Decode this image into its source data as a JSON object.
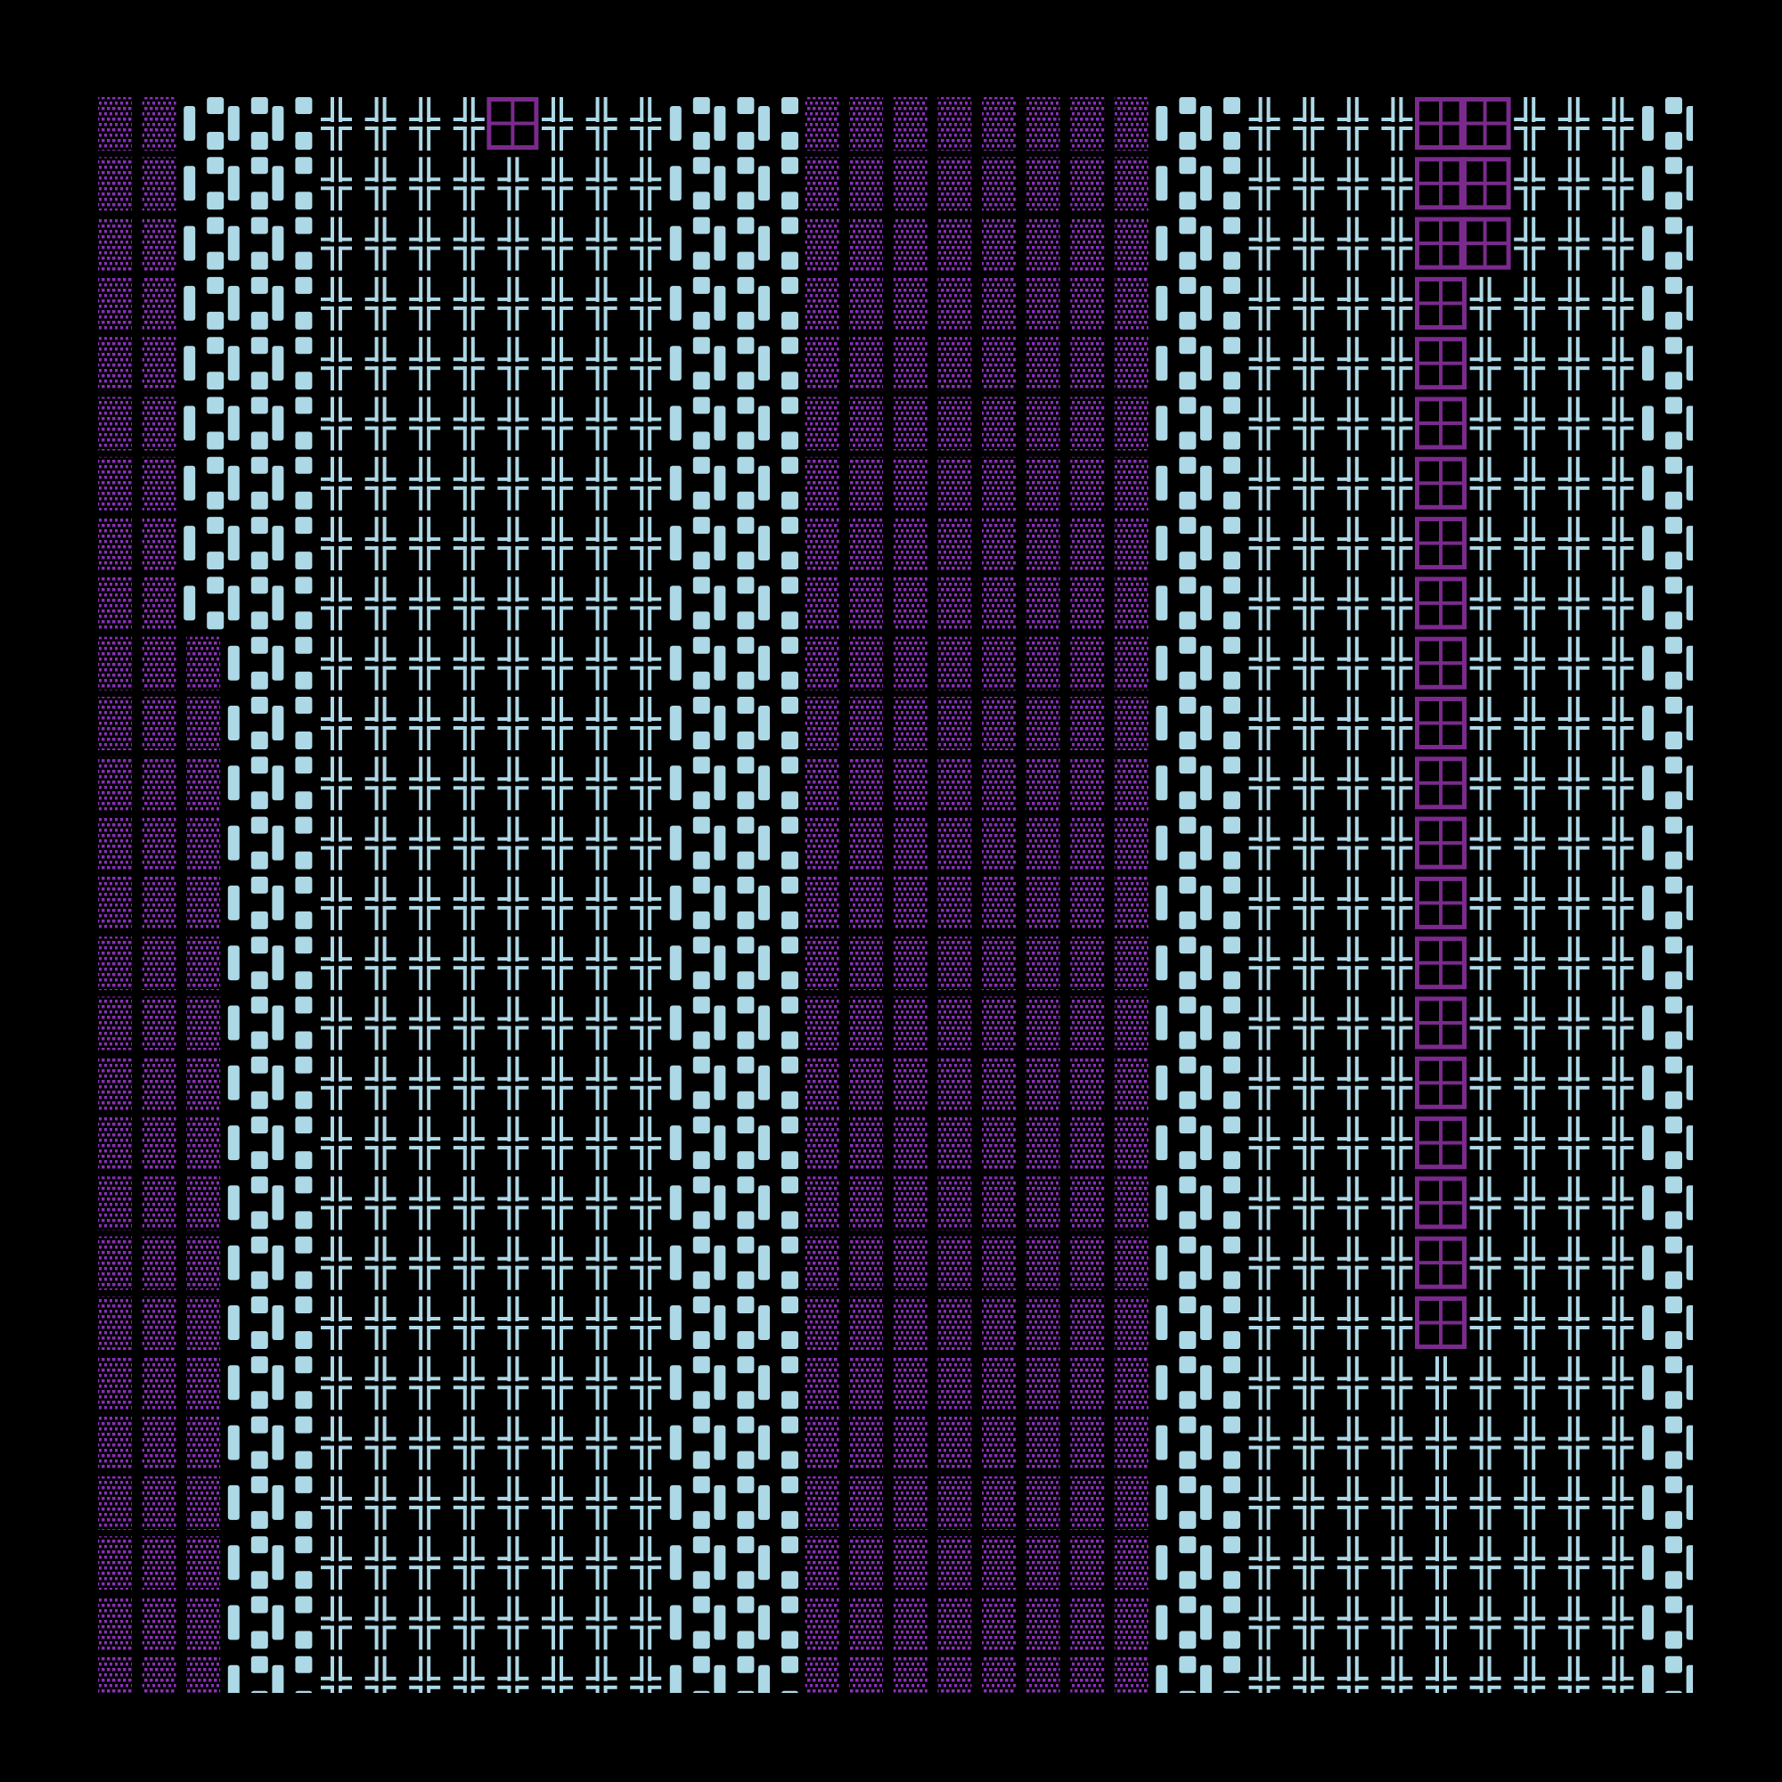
{
  "background": "#000000",
  "tiles": {
    "░": {
      "name": "shade-tile",
      "icon": "dotted-shade-icon",
      "color": "#8a2fb8"
    },
    "▐": {
      "name": "pillar-tile",
      "icon": "bar-and-blocks-icon",
      "color": "#add8e6"
    },
    "╬": {
      "name": "cross-tile",
      "icon": "double-cross-icon",
      "color": "#add8e6"
    },
    "⊞": {
      "name": "window-tile",
      "icon": "boxed-grid-icon",
      "color": "#7a2a8c"
    }
  },
  "grid": {
    "rows": [
      "░░▐▐▐╬╬╬╬⊞╬╬╬▐▐▐░░░░░░░░▐▐╬╬╬╬⊞⊞╬╬╬▐▐",
      "░░▐▐▐╬╬╬╬╬╬╬╬▐▐▐░░░░░░░░▐▐╬╬╬╬⊞⊞╬╬╬▐▐",
      "░░▐▐▐╬╬╬╬╬╬╬╬▐▐▐░░░░░░░░▐▐╬╬╬╬⊞⊞╬╬╬▐▐",
      "░░▐▐▐╬╬╬╬╬╬╬╬▐▐▐░░░░░░░░▐▐╬╬╬╬⊞╬╬╬╬▐▐",
      "░░▐▐▐╬╬╬╬╬╬╬╬▐▐▐░░░░░░░░▐▐╬╬╬╬⊞╬╬╬╬▐▐",
      "░░▐▐▐╬╬╬╬╬╬╬╬▐▐▐░░░░░░░░▐▐╬╬╬╬⊞╬╬╬╬▐▐",
      "░░▐▐▐╬╬╬╬╬╬╬╬▐▐▐░░░░░░░░▐▐╬╬╬╬⊞╬╬╬╬▐▐",
      "░░▐▐▐╬╬╬╬╬╬╬╬▐▐▐░░░░░░░░▐▐╬╬╬╬⊞╬╬╬╬▐▐",
      "░░▐▐▐╬╬╬╬╬╬╬╬▐▐▐░░░░░░░░▐▐╬╬╬╬⊞╬╬╬╬▐▐",
      "░░░▐▐╬╬╬╬╬╬╬╬▐▐▐░░░░░░░░▐▐╬╬╬╬⊞╬╬╬╬▐▐",
      "░░░▐▐╬╬╬╬╬╬╬╬▐▐▐░░░░░░░░▐▐╬╬╬╬⊞╬╬╬╬▐▐",
      "░░░▐▐╬╬╬╬╬╬╬╬▐▐▐░░░░░░░░▐▐╬╬╬╬⊞╬╬╬╬▐▐",
      "░░░▐▐╬╬╬╬╬╬╬╬▐▐▐░░░░░░░░▐▐╬╬╬╬⊞╬╬╬╬▐▐",
      "░░░▐▐╬╬╬╬╬╬╬╬▐▐▐░░░░░░░░▐▐╬╬╬╬⊞╬╬╬╬▐▐",
      "░░░▐▐╬╬╬╬╬╬╬╬▐▐▐░░░░░░░░▐▐╬╬╬╬⊞╬╬╬╬▐▐",
      "░░░▐▐╬╬╬╬╬╬╬╬▐▐▐░░░░░░░░▐▐╬╬╬╬⊞╬╬╬╬▐▐",
      "░░░▐▐╬╬╬╬╬╬╬╬▐▐▐░░░░░░░░▐▐╬╬╬╬⊞╬╬╬╬▐▐",
      "░░░▐▐╬╬╬╬╬╬╬╬▐▐▐░░░░░░░░▐▐╬╬╬╬⊞╬╬╬╬▐▐",
      "░░░▐▐╬╬╬╬╬╬╬╬▐▐▐░░░░░░░░▐▐╬╬╬╬⊞╬╬╬╬▐▐",
      "░░░▐▐╬╬╬╬╬╬╬╬▐▐▐░░░░░░░░▐▐╬╬╬╬⊞╬╬╬╬▐▐",
      "░░░▐▐╬╬╬╬╬╬╬╬▐▐▐░░░░░░░░▐▐╬╬╬╬⊞╬╬╬╬▐▐",
      "░░░▐▐╬╬╬╬╬╬╬╬▐▐▐░░░░░░░░▐▐╬╬╬╬╬╬╬╬╬▐▐",
      "░░░▐▐╬╬╬╬╬╬╬╬▐▐▐░░░░░░░░▐▐╬╬╬╬╬╬╬╬╬▐▐",
      "░░░▐▐╬╬╬╬╬╬╬╬▐▐▐░░░░░░░░▐▐╬╬╬╬╬╬╬╬╬▐▐",
      "░░░▐▐╬╬╬╬╬╬╬╬▐▐▐░░░░░░░░▐▐╬╬╬╬╬╬╬╬╬▐▐",
      "░░░▐▐╬╬╬╬╬╬╬╬▐▐▐░░░░░░░░▐▐╬╬╬╬╬╬╬╬╬▐▐",
      "░░░▐▐╬╬╬╬╬╬╬╬▐▐▐░░░░░░░░▐▐╬╬╬╬╬╬╬╬╬▐▐"
    ]
  }
}
